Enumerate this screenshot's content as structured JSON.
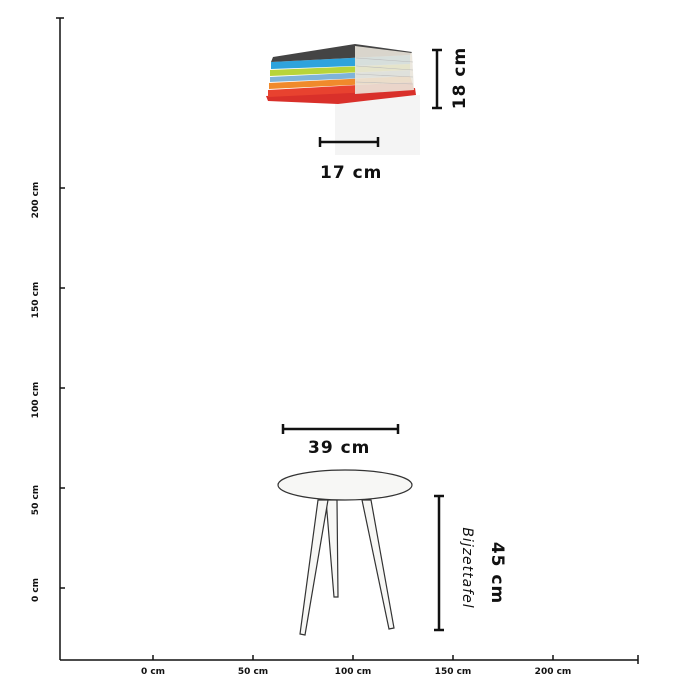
{
  "y_axis": {
    "ticks": [
      "200 cm",
      "150 cm",
      "100 cm",
      "50 cm",
      "0 cm"
    ]
  },
  "x_axis": {
    "ticks": [
      "0 cm",
      "50 cm",
      "100 cm",
      "150 cm",
      "200 cm"
    ]
  },
  "shelf": {
    "width_label": "17 cm",
    "height_label": "18 cm",
    "colors": {
      "shelf": "#d9302a",
      "books": [
        "#e8422f",
        "#f08a2c",
        "#7fb3d9",
        "#b8d43a",
        "#2ea3dc",
        "#e5e5e5"
      ]
    }
  },
  "table": {
    "width_label": "39 cm",
    "height_label": "45 cm",
    "name": "Bijzettafel"
  }
}
